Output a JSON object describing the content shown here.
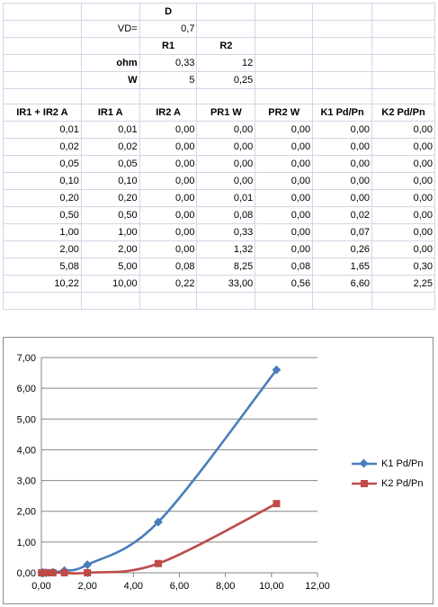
{
  "sheet": {
    "row1": {
      "d_label": "D"
    },
    "row2": {
      "vd_label": "VD=",
      "vd_value": "0,7"
    },
    "row3": {
      "r1_label": "R1",
      "r2_label": "R2"
    },
    "row4": {
      "unit_label": "ohm",
      "r1_value": "0,33",
      "r2_value": "12"
    },
    "row5": {
      "unit_label": "W",
      "r1_value": "5",
      "r2_value": "0,25"
    },
    "headers": [
      "IR1 + IR2 A",
      "IR1 A",
      "IR2 A",
      "PR1 W",
      "PR2 W",
      "K1 Pd/Pn",
      "K2 Pd/Pn"
    ],
    "rows": [
      [
        "0,01",
        "0,01",
        "0,00",
        "0,00",
        "0,00",
        "0,00",
        "0,00"
      ],
      [
        "0,02",
        "0,02",
        "0,00",
        "0,00",
        "0,00",
        "0,00",
        "0,00"
      ],
      [
        "0,05",
        "0,05",
        "0,00",
        "0,00",
        "0,00",
        "0,00",
        "0,00"
      ],
      [
        "0,10",
        "0,10",
        "0,00",
        "0,00",
        "0,00",
        "0,00",
        "0,00"
      ],
      [
        "0,20",
        "0,20",
        "0,00",
        "0,01",
        "0,00",
        "0,00",
        "0,00"
      ],
      [
        "0,50",
        "0,50",
        "0,00",
        "0,08",
        "0,00",
        "0,02",
        "0,00"
      ],
      [
        "1,00",
        "1,00",
        "0,00",
        "0,33",
        "0,00",
        "0,07",
        "0,00"
      ],
      [
        "2,00",
        "2,00",
        "0,00",
        "1,32",
        "0,00",
        "0,26",
        "0,00"
      ],
      [
        "5,08",
        "5,00",
        "0,08",
        "8,25",
        "0,08",
        "1,65",
        "0,30"
      ],
      [
        "10,22",
        "10,00",
        "0,22",
        "33,00",
        "0,56",
        "6,60",
        "2,25"
      ]
    ]
  },
  "chart_data": {
    "type": "line",
    "title": "",
    "xlabel": "",
    "ylabel": "",
    "xlim": [
      0,
      12
    ],
    "ylim": [
      0,
      7
    ],
    "x_ticks": [
      "0,00",
      "2,00",
      "4,00",
      "6,00",
      "8,00",
      "10,00",
      "12,00"
    ],
    "y_ticks": [
      "0,00",
      "1,00",
      "2,00",
      "3,00",
      "4,00",
      "5,00",
      "6,00",
      "7,00"
    ],
    "grid": "horizontal",
    "legend_position": "right",
    "x": [
      0.01,
      0.02,
      0.05,
      0.1,
      0.2,
      0.5,
      1.0,
      2.0,
      5.08,
      10.22
    ],
    "series": [
      {
        "name": "K1 Pd/Pn",
        "color": "#4a7ebb",
        "marker": "diamond",
        "values": [
          0.0,
          0.0,
          0.0,
          0.0,
          0.0,
          0.02,
          0.07,
          0.26,
          1.65,
          6.6
        ]
      },
      {
        "name": "K2 Pd/Pn",
        "color": "#be4b48",
        "marker": "square",
        "values": [
          0.0,
          0.0,
          0.0,
          0.0,
          0.0,
          0.0,
          0.0,
          0.0,
          0.3,
          2.25
        ]
      }
    ]
  }
}
